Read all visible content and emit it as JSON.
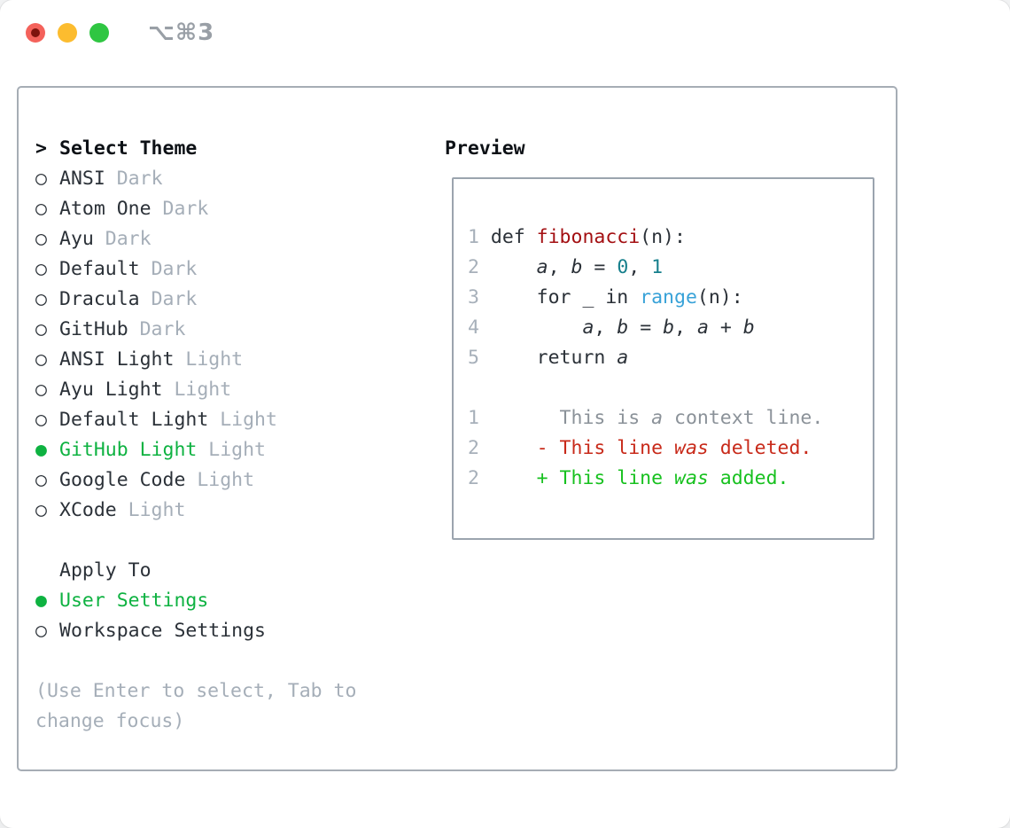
{
  "window": {
    "title_shortcut": "⌥⌘3",
    "traffic_lights": [
      "close",
      "minimize",
      "zoom"
    ]
  },
  "colors": {
    "accent_green": "#0eb241",
    "added_green": "#17c11f",
    "deleted_red": "#c82a1a",
    "function_red": "#a30f12",
    "number_teal": "#167f8c",
    "call_blue": "#38a2d8",
    "muted_gray": "#a5aeb8",
    "context_gray": "#8b9299",
    "text_dark": "#2b3138",
    "border_gray": "#a6adb5"
  },
  "menu": {
    "header_cursor": ">",
    "header_label": "Select Theme",
    "items": [
      {
        "name": "ANSI",
        "variant": "Dark",
        "selected": false
      },
      {
        "name": "Atom One",
        "variant": "Dark",
        "selected": false
      },
      {
        "name": "Ayu",
        "variant": "Dark",
        "selected": false
      },
      {
        "name": "Default",
        "variant": "Dark",
        "selected": false
      },
      {
        "name": "Dracula",
        "variant": "Dark",
        "selected": false
      },
      {
        "name": "GitHub",
        "variant": "Dark",
        "selected": false
      },
      {
        "name": "ANSI Light",
        "variant": "Light",
        "selected": false
      },
      {
        "name": "Ayu Light",
        "variant": "Light",
        "selected": false
      },
      {
        "name": "Default Light",
        "variant": "Light",
        "selected": false
      },
      {
        "name": "GitHub Light",
        "variant": "Light",
        "selected": true
      },
      {
        "name": "Google Code",
        "variant": "Light",
        "selected": false
      },
      {
        "name": "XCode",
        "variant": "Light",
        "selected": false
      }
    ],
    "markers": {
      "unselected": "○",
      "selected": "●"
    },
    "apply_to": {
      "label": "Apply To",
      "options": [
        {
          "label": "User Settings",
          "selected": true
        },
        {
          "label": "Workspace Settings",
          "selected": false
        }
      ]
    },
    "hint": "(Use Enter to select, Tab to change focus)"
  },
  "preview": {
    "title": "Preview",
    "code_lines": [
      [
        {
          "t": "1 ",
          "c": "ln"
        },
        {
          "t": "def ",
          "c": "pl"
        },
        {
          "t": "fibonacci",
          "c": "fn"
        },
        {
          "t": "(n):",
          "c": "pl"
        }
      ],
      [
        {
          "t": "2 ",
          "c": "ln"
        },
        {
          "t": "    ",
          "c": "pl"
        },
        {
          "t": "a",
          "c": "var"
        },
        {
          "t": ", ",
          "c": "pl"
        },
        {
          "t": "b",
          "c": "var"
        },
        {
          "t": " = ",
          "c": "pl"
        },
        {
          "t": "0",
          "c": "num"
        },
        {
          "t": ", ",
          "c": "pl"
        },
        {
          "t": "1",
          "c": "num"
        }
      ],
      [
        {
          "t": "3 ",
          "c": "ln"
        },
        {
          "t": "    for _ in ",
          "c": "pl"
        },
        {
          "t": "range",
          "c": "call"
        },
        {
          "t": "(n):",
          "c": "pl"
        }
      ],
      [
        {
          "t": "4 ",
          "c": "ln"
        },
        {
          "t": "        ",
          "c": "pl"
        },
        {
          "t": "a",
          "c": "var"
        },
        {
          "t": ", ",
          "c": "pl"
        },
        {
          "t": "b",
          "c": "var"
        },
        {
          "t": " = ",
          "c": "pl"
        },
        {
          "t": "b",
          "c": "var"
        },
        {
          "t": ", ",
          "c": "pl"
        },
        {
          "t": "a",
          "c": "var"
        },
        {
          "t": " + ",
          "c": "pl"
        },
        {
          "t": "b",
          "c": "var"
        }
      ],
      [
        {
          "t": "5 ",
          "c": "ln"
        },
        {
          "t": "    return ",
          "c": "pl"
        },
        {
          "t": "a",
          "c": "var"
        }
      ],
      [],
      [
        {
          "t": "1 ",
          "c": "ln"
        },
        {
          "t": "      This is ",
          "c": "ctx"
        },
        {
          "t": "a",
          "c": "ctx-i"
        },
        {
          "t": " context line.",
          "c": "ctx"
        }
      ],
      [
        {
          "t": "2 ",
          "c": "ln"
        },
        {
          "t": "    - This line ",
          "c": "del"
        },
        {
          "t": "was",
          "c": "del-i"
        },
        {
          "t": " deleted.",
          "c": "del"
        }
      ],
      [
        {
          "t": "2 ",
          "c": "ln"
        },
        {
          "t": "    + This line ",
          "c": "add"
        },
        {
          "t": "was",
          "c": "add-i"
        },
        {
          "t": " added.",
          "c": "add"
        }
      ]
    ]
  }
}
